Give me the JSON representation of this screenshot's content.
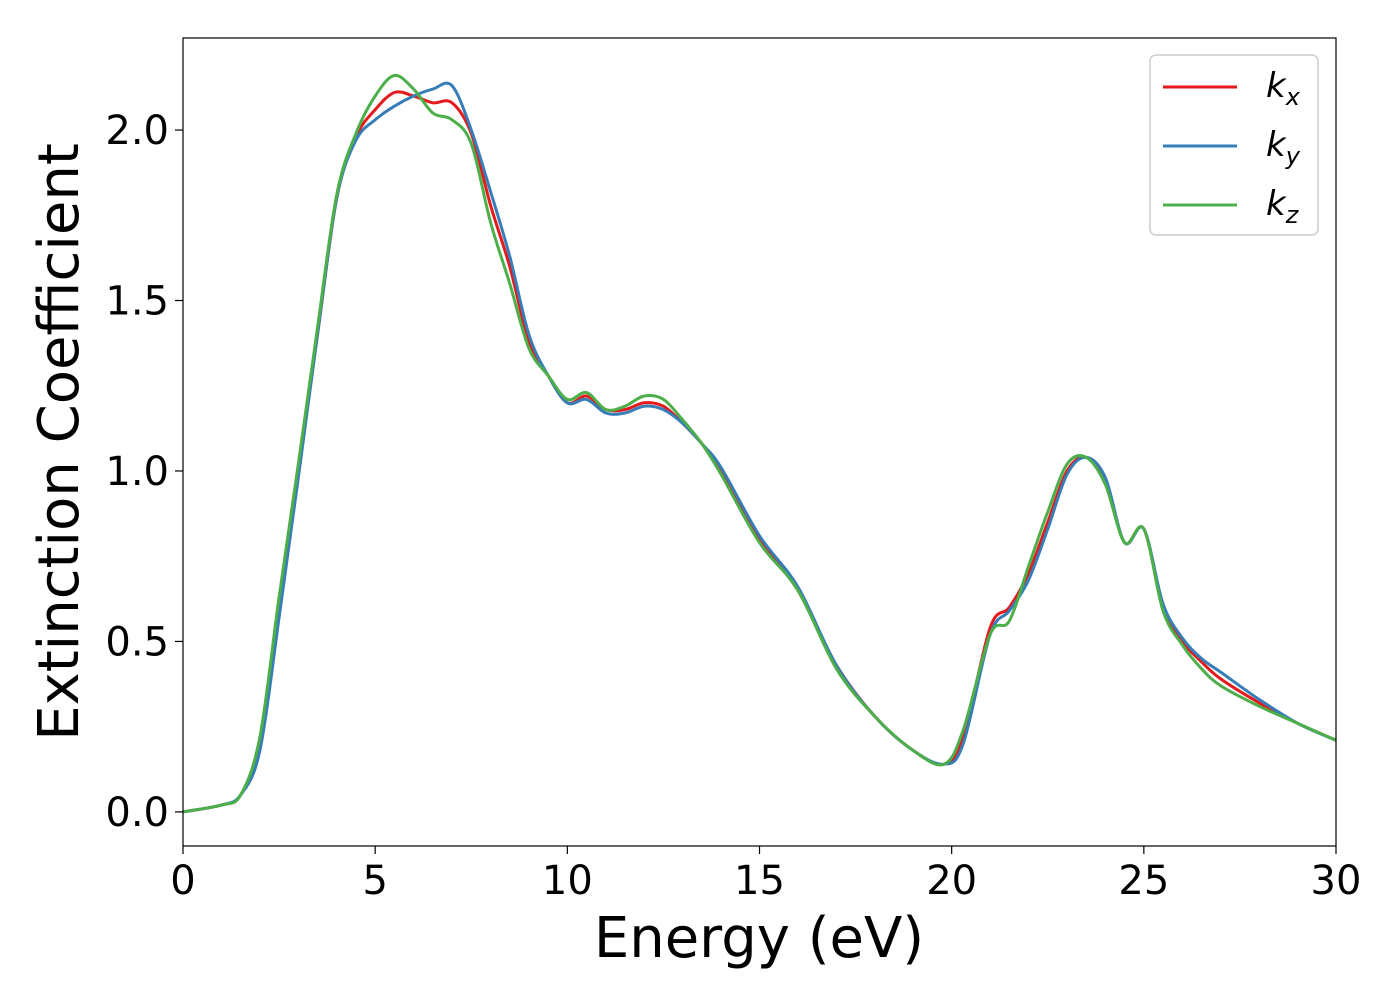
{
  "chart_data": {
    "type": "line",
    "title": "",
    "xlabel": "Energy (eV)",
    "ylabel": "Extinction Coefficient",
    "xlim": [
      0,
      30
    ],
    "ylim": [
      -0.1,
      2.27
    ],
    "xticks": [
      0,
      5,
      10,
      15,
      20,
      25,
      30
    ],
    "xtick_labels": [
      "0",
      "5",
      "10",
      "15",
      "20",
      "25",
      "30"
    ],
    "yticks": [
      0.0,
      0.5,
      1.0,
      1.5,
      2.0
    ],
    "ytick_labels": [
      "0.0",
      "0.5",
      "1.0",
      "1.5",
      "2.0"
    ],
    "grid": false,
    "legend_placement": "top-right",
    "series": [
      {
        "name": "k",
        "subscript": "x",
        "color": "#e41a1c",
        "x": [
          0,
          1,
          1.5,
          2,
          2.5,
          3,
          3.5,
          4,
          4.5,
          5,
          5.5,
          6,
          6.5,
          7,
          7.5,
          8,
          8.5,
          9,
          9.5,
          10,
          10.5,
          11,
          11.5,
          12,
          12.5,
          13,
          13.5,
          14,
          15,
          16,
          17,
          18,
          19,
          19.8,
          20.3,
          21,
          21.5,
          22,
          22.5,
          23,
          23.5,
          24,
          24.5,
          25,
          25.5,
          26,
          26.5,
          27,
          28,
          29,
          30
        ],
        "y": [
          0,
          0.02,
          0.05,
          0.2,
          0.6,
          1.0,
          1.4,
          1.8,
          1.98,
          2.06,
          2.11,
          2.1,
          2.08,
          2.08,
          1.99,
          1.78,
          1.6,
          1.38,
          1.28,
          1.2,
          1.22,
          1.18,
          1.18,
          1.2,
          1.19,
          1.14,
          1.08,
          1.0,
          0.8,
          0.65,
          0.43,
          0.28,
          0.18,
          0.14,
          0.22,
          0.54,
          0.6,
          0.7,
          0.85,
          1.0,
          1.04,
          0.97,
          0.79,
          0.83,
          0.6,
          0.5,
          0.44,
          0.39,
          0.32,
          0.26,
          0.21
        ]
      },
      {
        "name": "k",
        "subscript": "y",
        "color": "#377eb8",
        "x": [
          0,
          1,
          1.5,
          2,
          2.5,
          3,
          3.5,
          4,
          4.5,
          5,
          5.5,
          6,
          6.5,
          7,
          7.5,
          8,
          8.5,
          9,
          9.5,
          10,
          10.5,
          11,
          11.5,
          12,
          12.5,
          13,
          13.5,
          14,
          15,
          16,
          17,
          18,
          19,
          19.8,
          20.3,
          21,
          21.5,
          22,
          22.5,
          23,
          23.5,
          24,
          24.5,
          25,
          25.5,
          26,
          26.5,
          27,
          28,
          29,
          30
        ],
        "y": [
          0,
          0.02,
          0.05,
          0.18,
          0.57,
          0.98,
          1.4,
          1.8,
          1.97,
          2.03,
          2.07,
          2.1,
          2.12,
          2.13,
          2.0,
          1.82,
          1.63,
          1.4,
          1.28,
          1.2,
          1.21,
          1.17,
          1.17,
          1.19,
          1.18,
          1.14,
          1.08,
          1.01,
          0.81,
          0.66,
          0.43,
          0.28,
          0.18,
          0.14,
          0.2,
          0.52,
          0.59,
          0.68,
          0.83,
          0.99,
          1.04,
          0.98,
          0.79,
          0.83,
          0.61,
          0.51,
          0.45,
          0.41,
          0.33,
          0.26,
          0.21
        ]
      },
      {
        "name": "k",
        "subscript": "z",
        "color": "#4daf4a",
        "x": [
          0,
          1,
          1.5,
          2,
          2.5,
          3,
          3.5,
          4,
          4.5,
          5,
          5.5,
          6,
          6.5,
          7,
          7.5,
          8,
          8.5,
          9,
          9.5,
          10,
          10.5,
          11,
          11.5,
          12,
          12.5,
          13,
          13.5,
          14,
          15,
          16,
          17,
          18,
          19,
          19.8,
          20.3,
          21,
          21.5,
          22,
          22.5,
          23,
          23.5,
          24,
          24.5,
          25,
          25.5,
          26,
          26.5,
          27,
          28,
          29,
          30
        ],
        "y": [
          0,
          0.02,
          0.05,
          0.22,
          0.63,
          1.02,
          1.42,
          1.81,
          1.99,
          2.1,
          2.16,
          2.12,
          2.05,
          2.03,
          1.96,
          1.73,
          1.55,
          1.36,
          1.28,
          1.21,
          1.23,
          1.18,
          1.19,
          1.22,
          1.21,
          1.15,
          1.08,
          0.99,
          0.79,
          0.65,
          0.42,
          0.28,
          0.18,
          0.14,
          0.24,
          0.52,
          0.56,
          0.72,
          0.88,
          1.02,
          1.04,
          0.96,
          0.79,
          0.83,
          0.59,
          0.49,
          0.42,
          0.37,
          0.31,
          0.26,
          0.21
        ]
      }
    ]
  }
}
